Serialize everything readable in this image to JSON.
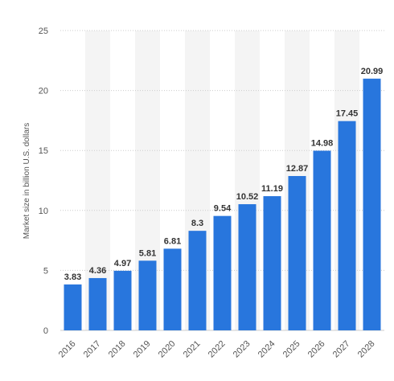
{
  "chart_data": {
    "type": "bar",
    "categories": [
      "2016",
      "2017",
      "2018",
      "2019",
      "2020",
      "2021",
      "2022",
      "2023",
      "2024",
      "2025",
      "2026",
      "2027",
      "2028"
    ],
    "values": [
      3.83,
      4.36,
      4.97,
      5.81,
      6.81,
      8.3,
      9.54,
      10.52,
      11.19,
      12.87,
      14.98,
      17.45,
      20.99
    ],
    "data_labels": [
      "3.83",
      "4.36",
      "4.97",
      "5.81",
      "6.81",
      "8.3",
      "9.54",
      "10.52",
      "11.19",
      "12.87",
      "14.98",
      "17.45",
      "20.99"
    ],
    "title": "",
    "xlabel": "",
    "ylabel": "Market size in billion U.S. dollars",
    "ylim": [
      0,
      25
    ],
    "yticks": [
      "0",
      "5",
      "10",
      "15",
      "20",
      "25"
    ],
    "grid": true,
    "legend": "none",
    "bar_color": "#2876dd",
    "band_color": "#f4f4f4",
    "grid_color": "#cccccc"
  }
}
